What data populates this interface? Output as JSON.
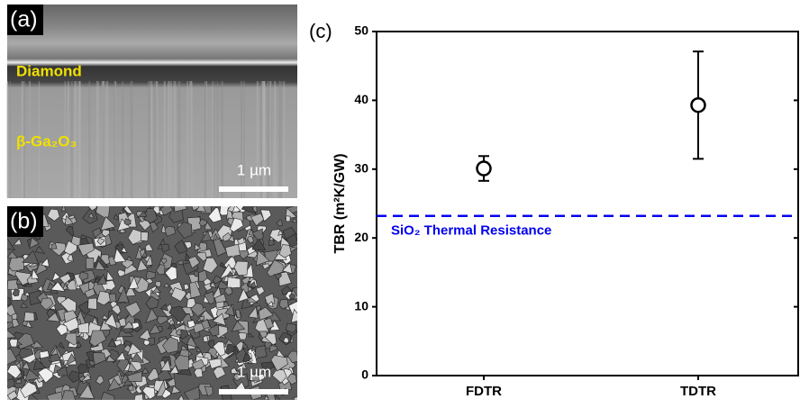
{
  "panels": {
    "a": {
      "label": "(a)",
      "top_layer": "Diamond",
      "bottom_layer": "β-Ga₂O₃",
      "scale_bar": "1 µm"
    },
    "b": {
      "label": "(b)",
      "scale_bar": "1 µm"
    },
    "c": {
      "label": "(c)"
    }
  },
  "chart_data": {
    "type": "errorbar-scatter",
    "y_label": "TBR (m²K/GW)",
    "categories": [
      "FDTR",
      "TDTR"
    ],
    "series": [
      {
        "color": "#000000",
        "values": [
          30.1,
          39.3
        ],
        "errors": [
          1.8,
          7.8
        ]
      }
    ],
    "reference_line": {
      "value": 23.2,
      "label": "SiO₂ Thermal Resistance",
      "color": "#0000ee"
    },
    "ylim": [
      0,
      50
    ],
    "yticks": [
      0,
      10,
      20,
      30,
      40,
      50
    ]
  }
}
